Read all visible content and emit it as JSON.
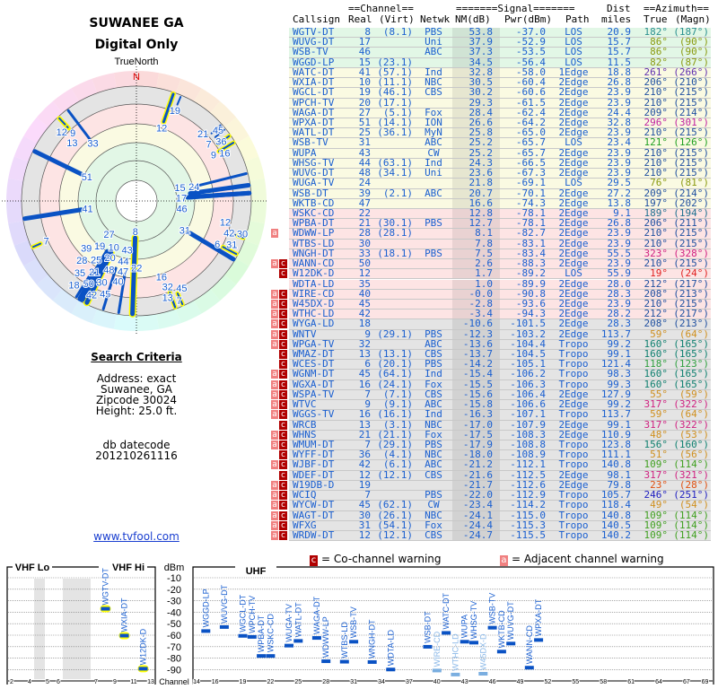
{
  "header": {
    "title": "SUWANEE GA",
    "subtitle": "Digital Only"
  },
  "radar": {
    "label": "TrueNorth",
    "north": "N"
  },
  "search": {
    "heading": "Search Criteria",
    "address": "Address: exact",
    "city": "Suwanee, GA",
    "zip": "Zipcode 30024",
    "height": "Height: 25.0 ft.",
    "db_label": "db datecode",
    "db_value": "201210261116"
  },
  "link": "www.tvfool.com",
  "table": {
    "group_channel": "==Channel==",
    "group_signal": "=======Signal=======",
    "group_dist": "Dist",
    "group_az": "==Azimuth==",
    "cols": [
      "Callsign",
      "Real",
      "(Virt)",
      "Netwk",
      "NM(dB)",
      "Pwr(dBm)",
      "Path",
      "miles",
      "True",
      "(Magn)"
    ],
    "rows": [
      [
        "",
        "WGTV-DT",
        "8",
        "(8.1)",
        "PBS",
        "53.8",
        "-37.0",
        "LOS",
        "20.9",
        "182°",
        "(187°)",
        "#2a9090",
        "g"
      ],
      [
        "",
        "WUVG-DT",
        "17",
        "",
        "Uni",
        "37.9",
        "-52.9",
        "LOS",
        "15.7",
        "86°",
        "(90°)",
        "#8a9a10",
        "g"
      ],
      [
        "",
        "WSB-TV",
        "46",
        "",
        "ABC",
        "37.3",
        "-53.5",
        "LOS",
        "15.7",
        "86°",
        "(90°)",
        "#8a9a10",
        "g"
      ],
      [
        "",
        "WGGD-LP",
        "15",
        "(23.1)",
        "",
        "34.5",
        "-56.4",
        "LOS",
        "11.5",
        "82°",
        "(87°)",
        "#8a9a10",
        "g"
      ],
      [
        "",
        "WATC-DT",
        "41",
        "(57.1)",
        "Ind",
        "32.8",
        "-58.0",
        "1Edge",
        "18.8",
        "261°",
        "(266°)",
        "#6030b0",
        "y"
      ],
      [
        "",
        "WXIA-DT",
        "10",
        "(11.1)",
        "NBC",
        "30.5",
        "-60.4",
        "2Edge",
        "26.8",
        "206°",
        "(210°)",
        "#2050a0",
        "y"
      ],
      [
        "",
        "WGCL-DT",
        "19",
        "(46.1)",
        "CBS",
        "30.2",
        "-60.6",
        "2Edge",
        "23.9",
        "210°",
        "(215°)",
        "#2050a0",
        "y"
      ],
      [
        "",
        "WPCH-TV",
        "20",
        "(17.1)",
        "",
        "29.3",
        "-61.5",
        "2Edge",
        "23.9",
        "210°",
        "(215°)",
        "#2050a0",
        "y"
      ],
      [
        "",
        "WAGA-DT",
        "27",
        "(5.1)",
        "Fox",
        "28.4",
        "-62.4",
        "2Edge",
        "24.4",
        "209°",
        "(214°)",
        "#2050a0",
        "y"
      ],
      [
        "",
        "WPXA-DT",
        "51",
        "(14.1)",
        "ION",
        "26.6",
        "-64.2",
        "2Edge",
        "32.8",
        "296°",
        "(301°)",
        "#c020a0",
        "y"
      ],
      [
        "",
        "WATL-DT",
        "25",
        "(36.1)",
        "MyN",
        "25.8",
        "-65.0",
        "2Edge",
        "23.9",
        "210°",
        "(215°)",
        "#2050a0",
        "y"
      ],
      [
        "",
        "WSB-TV",
        "31",
        "",
        "ABC",
        "25.2",
        "-65.7",
        "LOS",
        "23.4",
        "121°",
        "(126°)",
        "#20a020",
        "y"
      ],
      [
        "",
        "WUPA",
        "43",
        "",
        "CW",
        "25.2",
        "-65.7",
        "2Edge",
        "23.9",
        "210°",
        "(215°)",
        "#2050a0",
        "y"
      ],
      [
        "",
        "WHSG-TV",
        "44",
        "(63.1)",
        "Ind",
        "24.3",
        "-66.5",
        "2Edge",
        "23.9",
        "210°",
        "(215°)",
        "#2050a0",
        "y"
      ],
      [
        "",
        "WUVG-DT",
        "48",
        "(34.1)",
        "Uni",
        "23.6",
        "-67.3",
        "2Edge",
        "23.9",
        "210°",
        "(215°)",
        "#2050a0",
        "y"
      ],
      [
        "",
        "WUGA-TV",
        "24",
        "",
        "",
        "21.8",
        "-69.1",
        "LOS",
        "29.5",
        "76°",
        "(81°)",
        "#8a9a10",
        "y"
      ],
      [
        "",
        "WSB-DT",
        "39",
        "(2.1)",
        "ABC",
        "20.7",
        "-70.1",
        "2Edge",
        "27.2",
        "209°",
        "(214°)",
        "#2050a0",
        "y"
      ],
      [
        "",
        "WKTB-CD",
        "47",
        "",
        "",
        "16.6",
        "-74.3",
        "2Edge",
        "13.8",
        "197°",
        "(202°)",
        "#2050a0",
        "y"
      ],
      [
        "",
        "WSKC-CD",
        "22",
        "",
        "",
        "12.8",
        "-78.1",
        "2Edge",
        "9.1",
        "189°",
        "(194°)",
        "#207090",
        "p"
      ],
      [
        "",
        "WPBA-DT",
        "21",
        "(30.1)",
        "PBS",
        "12.7",
        "-78.1",
        "2Edge",
        "26.8",
        "206°",
        "(211°)",
        "#2050a0",
        "p"
      ],
      [
        "a",
        "WDWW-LP",
        "28",
        "(28.1)",
        "",
        "8.1",
        "-82.7",
        "2Edge",
        "23.9",
        "210°",
        "(215°)",
        "#2050a0",
        "p"
      ],
      [
        "",
        "WTBS-LD",
        "30",
        "",
        "",
        "7.8",
        "-83.1",
        "2Edge",
        "23.9",
        "210°",
        "(215°)",
        "#2050a0",
        "p"
      ],
      [
        "",
        "WNGH-DT",
        "33",
        "(18.1)",
        "PBS",
        "7.5",
        "-83.4",
        "2Edge",
        "55.5",
        "323°",
        "(328°)",
        "#d02080",
        "p"
      ],
      [
        "ac",
        "WANN-CD",
        "50",
        "",
        "",
        "2.6",
        "-88.3",
        "2Edge",
        "23.9",
        "210°",
        "(215°)",
        "#2050a0",
        "p"
      ],
      [
        "c",
        "W12DK-D",
        "12",
        "",
        "",
        "1.7",
        "-89.2",
        "LOS",
        "55.9",
        "19°",
        "(24°)",
        "#e02020",
        "p"
      ],
      [
        "",
        "WDTA-LD",
        "35",
        "",
        "",
        "1.0",
        "-89.9",
        "2Edge",
        "28.0",
        "212°",
        "(217°)",
        "#2050a0",
        "p"
      ],
      [
        "ac",
        "WIRE-CD",
        "40",
        "",
        "",
        "-0.0",
        "-90.8",
        "2Edge",
        "28.3",
        "208°",
        "(213°)",
        "#2050a0",
        "p"
      ],
      [
        "ac",
        "W45DX-D",
        "45",
        "",
        "",
        "-2.8",
        "-93.6",
        "2Edge",
        "23.9",
        "210°",
        "(215°)",
        "#2050a0",
        "p"
      ],
      [
        "ac",
        "WTHC-LD",
        "42",
        "",
        "",
        "-3.4",
        "-94.3",
        "2Edge",
        "28.2",
        "212°",
        "(217°)",
        "#2050a0",
        "p"
      ],
      [
        "ac",
        "WYGA-LD",
        "18",
        "",
        "",
        "-10.6",
        "-101.5",
        "2Edge",
        "28.3",
        "208°",
        "(213°)",
        "#2050a0",
        "x"
      ],
      [
        "ac",
        "WNTV",
        "9",
        "(29.1)",
        "PBS",
        "-12.3",
        "-103.2",
        "2Edge",
        "113.7",
        "59°",
        "(64°)",
        "#d09020",
        "x"
      ],
      [
        "ac",
        "WPGA-TV",
        "32",
        "",
        "ABC",
        "-13.6",
        "-104.4",
        "Tropo",
        "99.2",
        "160°",
        "(165°)",
        "#108070",
        "x"
      ],
      [
        "c",
        "WMAZ-DT",
        "13",
        "(13.1)",
        "CBS",
        "-13.7",
        "-104.5",
        "Tropo",
        "99.1",
        "160°",
        "(165°)",
        "#108070",
        "x"
      ],
      [
        "c",
        "WCES-DT",
        "6",
        "(20.1)",
        "PBS",
        "-14.2",
        "-105.1",
        "Tropo",
        "121.4",
        "118°",
        "(123°)",
        "#30a040",
        "x"
      ],
      [
        "ac",
        "WGNM-DT",
        "45",
        "(64.1)",
        "Ind",
        "-15.4",
        "-106.2",
        "Tropo",
        "98.3",
        "160°",
        "(165°)",
        "#108070",
        "x"
      ],
      [
        "ac",
        "WGXA-DT",
        "16",
        "(24.1)",
        "Fox",
        "-15.5",
        "-106.3",
        "Tropo",
        "99.3",
        "160°",
        "(165°)",
        "#108070",
        "x"
      ],
      [
        "ac",
        "WSPA-TV",
        "7",
        "(7.1)",
        "CBS",
        "-15.6",
        "-106.4",
        "2Edge",
        "127.9",
        "55°",
        "(59°)",
        "#d09020",
        "x"
      ],
      [
        "ac",
        "WTVC",
        "9",
        "(9.1)",
        "ABC",
        "-15.8",
        "-106.6",
        "2Edge",
        "99.2",
        "317°",
        "(322°)",
        "#d02080",
        "x"
      ],
      [
        "ac",
        "WGGS-TV",
        "16",
        "(16.1)",
        "Ind",
        "-16.3",
        "-107.1",
        "Tropo",
        "113.7",
        "59°",
        "(64°)",
        "#d09020",
        "x"
      ],
      [
        "c",
        "WRCB",
        "13",
        "(3.1)",
        "NBC",
        "-17.0",
        "-107.9",
        "2Edge",
        "99.1",
        "317°",
        "(322°)",
        "#d02080",
        "x"
      ],
      [
        "ac",
        "WHNS",
        "21",
        "(21.1)",
        "Fox",
        "-17.5",
        "-108.3",
        "2Edge",
        "110.9",
        "48°",
        "(53°)",
        "#d09020",
        "x"
      ],
      [
        "ac",
        "WMUM-DT",
        "7",
        "(29.1)",
        "PBS",
        "-17.9",
        "-108.8",
        "Tropo",
        "123.8",
        "156°",
        "(160°)",
        "#108070",
        "x"
      ],
      [
        "c",
        "WYFF-DT",
        "36",
        "(4.1)",
        "NBC",
        "-18.0",
        "-108.9",
        "Tropo",
        "111.1",
        "51°",
        "(56°)",
        "#d09020",
        "x"
      ],
      [
        "ac",
        "WJBF-DT",
        "42",
        "(6.1)",
        "ABC",
        "-21.2",
        "-112.1",
        "Tropo",
        "140.8",
        "109°",
        "(114°)",
        "#40a020",
        "x"
      ],
      [
        "c",
        "WDEF-DT",
        "12",
        "(12.1)",
        "CBS",
        "-21.6",
        "-112.5",
        "2Edge",
        "98.1",
        "317°",
        "(321°)",
        "#d02080",
        "x"
      ],
      [
        "ac",
        "W19DB-D",
        "19",
        "",
        "",
        "-21.7",
        "-112.6",
        "2Edge",
        "79.8",
        "23°",
        "(28°)",
        "#e05010",
        "x"
      ],
      [
        "ac",
        "WCIQ",
        "7",
        "",
        "PBS",
        "-22.0",
        "-112.9",
        "Tropo",
        "105.7",
        "246°",
        "(251°)",
        "#2020c0",
        "x"
      ],
      [
        "ac",
        "WYCW-DT",
        "45",
        "(62.1)",
        "CW",
        "-23.4",
        "-114.2",
        "Tropo",
        "118.4",
        "49°",
        "(54°)",
        "#d09020",
        "x"
      ],
      [
        "ac",
        "WAGT-DT",
        "30",
        "(26.1)",
        "NBC",
        "-24.1",
        "-115.0",
        "Tropo",
        "140.8",
        "109°",
        "(114°)",
        "#40a020",
        "x"
      ],
      [
        "ac",
        "WFXG",
        "31",
        "(54.1)",
        "Fox",
        "-24.4",
        "-115.3",
        "Tropo",
        "140.5",
        "109°",
        "(114°)",
        "#40a020",
        "x"
      ],
      [
        "ac",
        "WRDW-DT",
        "12",
        "(12.1)",
        "CBS",
        "-24.7",
        "-115.5",
        "Tropo",
        "140.2",
        "109°",
        "(114°)",
        "#40a020",
        "x"
      ]
    ]
  },
  "legend": {
    "co_mark": "c",
    "co_label": "= Co-channel warning",
    "adj_mark": "a",
    "adj_label": "= Adjacent channel warning"
  },
  "spectrum": {
    "vhf_lo": "VHF Lo",
    "vhf_hi": "VHF Hi",
    "uhf": "UHF",
    "unit": "dBm",
    "channel_label": "Channel",
    "dbm_ticks": [
      "-10",
      "-20",
      "-30",
      "-40",
      "-50",
      "-60",
      "-70",
      "-80",
      "-90"
    ],
    "vhf_ticks": [
      "2",
      "4",
      "5",
      "6",
      "7",
      "9",
      "11",
      "13"
    ],
    "uhf_ticks": [
      "14",
      "16",
      "19",
      "22",
      "25",
      "28",
      "31",
      "34",
      "37",
      "40",
      "43",
      "46",
      "49",
      "52",
      "55",
      "58",
      "61",
      "64",
      "67",
      "69"
    ]
  },
  "colors": {
    "green": "#e2f7e6",
    "yellow": "#fafae2",
    "pink": "#fde4e4",
    "gray": "#e4e4e4",
    "link": "#1a5fd0"
  }
}
